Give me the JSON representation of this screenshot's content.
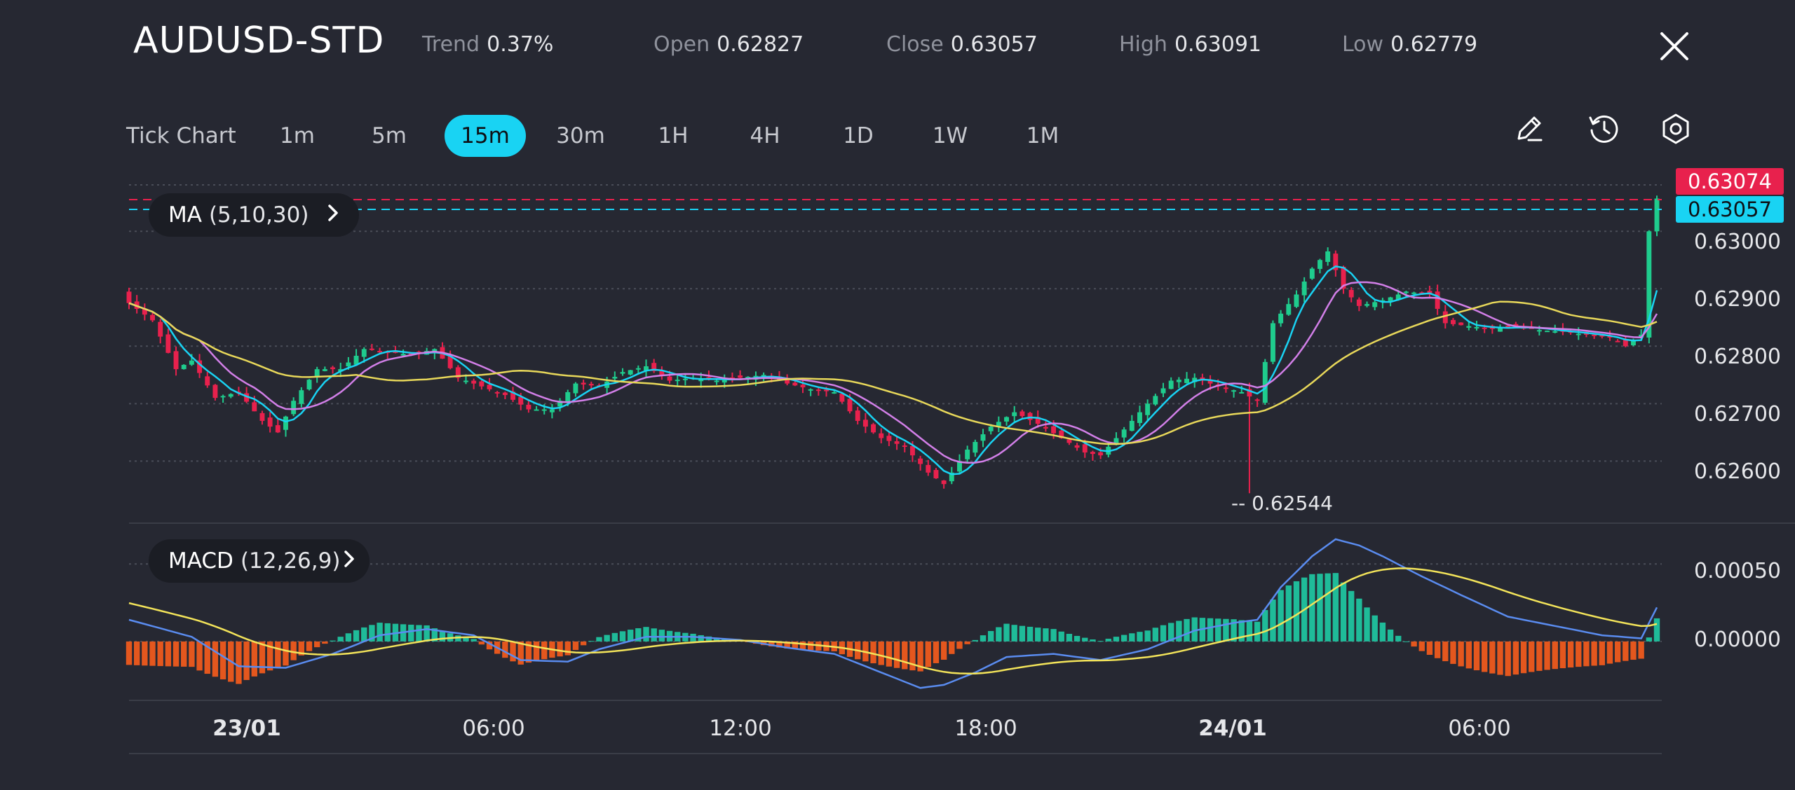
{
  "header": {
    "symbol": "AUDUSD-STD",
    "trend_label": "Trend",
    "trend_value": "0.37%",
    "open_label": "Open",
    "open_value": "0.62827",
    "close_label": "Close",
    "close_value": "0.63057",
    "high_label": "High",
    "high_value": "0.63091",
    "low_label": "Low",
    "low_value": "0.62779"
  },
  "timeframes": {
    "tick": "Tick Chart",
    "items": [
      "1m",
      "5m",
      "15m",
      "30m",
      "1H",
      "4H",
      "1D",
      "1W",
      "1M"
    ],
    "active": "15m"
  },
  "toolbar": {
    "icons": [
      "pencil-icon",
      "history-icon",
      "settings-hexagon-icon"
    ]
  },
  "indicators": {
    "ma_label": "MA",
    "ma_params": "(5,10,30)",
    "macd_label": "MACD",
    "macd_params": "(12,26,9)"
  },
  "price_axis": {
    "labels": [
      "0.63000",
      "0.62900",
      "0.62800",
      "0.62700",
      "0.62600"
    ],
    "high_tag": "0.63074",
    "current_tag": "0.63057",
    "low_marker": "-- 0.62544"
  },
  "macd_axis": {
    "labels": [
      "0.00050",
      "0.00000"
    ]
  },
  "time_axis": {
    "labels": [
      "23/01",
      "06:00",
      "12:00",
      "18:00",
      "24/01",
      "06:00"
    ],
    "bold": [
      true,
      false,
      false,
      false,
      true,
      false
    ]
  },
  "colors": {
    "background": "#262832",
    "up": "#1fcc8d",
    "down": "#e8214d",
    "ma5": "#19d3f3",
    "ma10": "#d27fe8",
    "ma30": "#e8d85a",
    "macd_line": "#5a8cf0",
    "signal_line": "#f3e45a",
    "hist_neg": "#e4571e",
    "hist_pos": "#1fbb99",
    "active_tab": "#19d3f3",
    "high_tag": "#e8214d",
    "current_tag": "#19d3f3"
  },
  "chart_data": {
    "type": "candlestick",
    "price_ylim": [
      0.6252,
      0.6311
    ],
    "price_ticks": [
      0.63,
      0.629,
      0.628,
      0.627,
      0.626
    ],
    "macd_ylim": [
      -0.00038,
      0.00075
    ],
    "macd_ticks": [
      0.0005,
      0.0
    ],
    "close_anchors": [
      [
        0,
        0.62875
      ],
      [
        3,
        0.62845
      ],
      [
        6,
        0.6276
      ],
      [
        8,
        0.62775
      ],
      [
        11,
        0.6271
      ],
      [
        14,
        0.6272
      ],
      [
        17,
        0.6267
      ],
      [
        19,
        0.6265
      ],
      [
        21,
        0.62705
      ],
      [
        24,
        0.6276
      ],
      [
        27,
        0.6276
      ],
      [
        30,
        0.62795
      ],
      [
        33,
        0.6279
      ],
      [
        36,
        0.62785
      ],
      [
        39,
        0.62795
      ],
      [
        42,
        0.62745
      ],
      [
        45,
        0.6273
      ],
      [
        48,
        0.62715
      ],
      [
        51,
        0.6269
      ],
      [
        54,
        0.6269
      ],
      [
        57,
        0.62735
      ],
      [
        60,
        0.6273
      ],
      [
        63,
        0.62755
      ],
      [
        66,
        0.62765
      ],
      [
        69,
        0.6274
      ],
      [
        72,
        0.62745
      ],
      [
        75,
        0.6274
      ],
      [
        78,
        0.62745
      ],
      [
        81,
        0.6275
      ],
      [
        84,
        0.62735
      ],
      [
        87,
        0.62725
      ],
      [
        90,
        0.6272
      ],
      [
        93,
        0.6267
      ],
      [
        96,
        0.6264
      ],
      [
        99,
        0.62625
      ],
      [
        102,
        0.6258
      ],
      [
        104,
        0.6256
      ],
      [
        107,
        0.6262
      ],
      [
        110,
        0.6266
      ],
      [
        113,
        0.62685
      ],
      [
        116,
        0.62665
      ],
      [
        119,
        0.6264
      ],
      [
        122,
        0.62615
      ],
      [
        124,
        0.6261
      ],
      [
        127,
        0.62655
      ],
      [
        130,
        0.627
      ],
      [
        133,
        0.6274
      ],
      [
        136,
        0.62745
      ],
      [
        139,
        0.6273
      ],
      [
        142,
        0.6272
      ],
      [
        144,
        0.62705
      ],
      [
        146,
        0.6284
      ],
      [
        149,
        0.6289
      ],
      [
        151,
        0.62935
      ],
      [
        153,
        0.62965
      ],
      [
        155,
        0.629
      ],
      [
        157,
        0.6287
      ],
      [
        160,
        0.6288
      ],
      [
        163,
        0.62895
      ],
      [
        166,
        0.6289
      ],
      [
        168,
        0.6284
      ],
      [
        171,
        0.62835
      ],
      [
        174,
        0.6283
      ],
      [
        177,
        0.62835
      ],
      [
        180,
        0.62828
      ],
      [
        183,
        0.62825
      ],
      [
        186,
        0.6282
      ],
      [
        189,
        0.62815
      ],
      [
        191,
        0.628
      ],
      [
        193,
        0.6282
      ],
      [
        194,
        0.63
      ],
      [
        195,
        0.63057
      ]
    ],
    "macd_anchors": [
      [
        0,
        0.00014
      ],
      [
        8,
        3e-05
      ],
      [
        14,
        -0.00016
      ],
      [
        20,
        -0.00017
      ],
      [
        26,
        -8e-05
      ],
      [
        32,
        4e-05
      ],
      [
        38,
        8e-05
      ],
      [
        44,
        4e-05
      ],
      [
        50,
        -0.00012
      ],
      [
        56,
        -0.00013
      ],
      [
        60,
        -5e-05
      ],
      [
        66,
        3e-05
      ],
      [
        72,
        3e-05
      ],
      [
        78,
        1e-05
      ],
      [
        84,
        -4e-05
      ],
      [
        90,
        -8e-05
      ],
      [
        96,
        -0.0002
      ],
      [
        101,
        -0.0003
      ],
      [
        104,
        -0.00028
      ],
      [
        108,
        -0.0002
      ],
      [
        112,
        -0.0001
      ],
      [
        118,
        -8e-05
      ],
      [
        124,
        -0.00012
      ],
      [
        130,
        -5e-05
      ],
      [
        136,
        7e-05
      ],
      [
        141,
        0.00012
      ],
      [
        144,
        0.00014
      ],
      [
        147,
        0.00035
      ],
      [
        151,
        0.00055
      ],
      [
        154,
        0.00066
      ],
      [
        157,
        0.00062
      ],
      [
        160,
        0.00055
      ],
      [
        165,
        0.00042
      ],
      [
        170,
        0.0003
      ],
      [
        176,
        0.00016
      ],
      [
        182,
        0.0001
      ],
      [
        188,
        4e-05
      ],
      [
        193,
        2e-05
      ],
      [
        195,
        0.00022
      ]
    ],
    "low_marker_index": 143,
    "low_marker_value": 0.62544
  }
}
